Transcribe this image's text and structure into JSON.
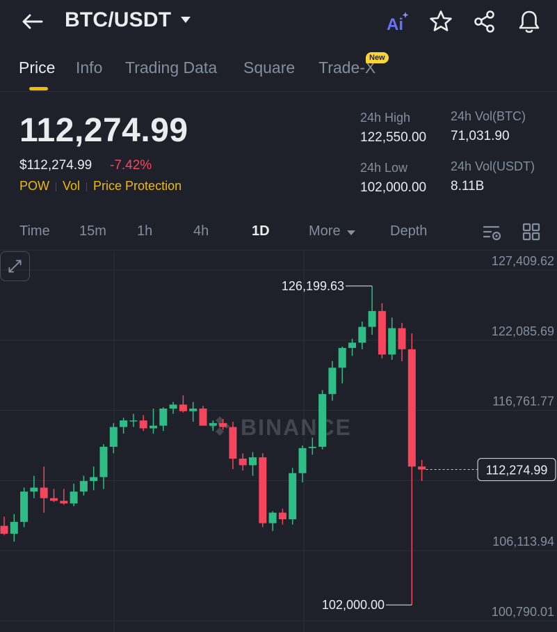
{
  "header": {
    "pair": "BTC/USDT",
    "icons": [
      "back-arrow-icon",
      "ai-icon",
      "star-icon",
      "share-icon",
      "bell-icon"
    ],
    "ai_label": "Ai"
  },
  "tabs": [
    {
      "label": "Price",
      "active": true
    },
    {
      "label": "Info"
    },
    {
      "label": "Trading Data"
    },
    {
      "label": "Square"
    },
    {
      "label": "Trade-X",
      "badge": "New"
    }
  ],
  "ticker": {
    "last_price": "112,274.99",
    "usd_price": "$112,274.99",
    "change_pct": "-7.42%",
    "tags": [
      "POW",
      "Vol",
      "Price Protection"
    ]
  },
  "stats": {
    "high_label": "24h High",
    "high_value": "122,550.00",
    "low_label": "24h Low",
    "low_value": "102,000.00",
    "vol_btc_label": "24h Vol(BTC)",
    "vol_btc_value": "71,031.90",
    "vol_usdt_label": "24h Vol(USDT)",
    "vol_usdt_value": "8.11B"
  },
  "intervals": {
    "items": [
      "Time",
      "15m",
      "1h",
      "4h",
      "1D",
      "More",
      "Depth"
    ],
    "active": "1D"
  },
  "colors": {
    "background": "#1e2129",
    "up": "#2ebd85",
    "down": "#f6465d",
    "accent": "#f0b90b",
    "muted": "#848e9c"
  },
  "chart": {
    "watermark": "BINANCE",
    "current_price_label": "112,274.99",
    "max_label": "126,199.63",
    "min_label": "102,000.00"
  },
  "chart_data": {
    "type": "candlestick",
    "y_ticks": [
      "127,409.62",
      "122,085.69",
      "116,761.77",
      "106,113.94",
      "100,790.01"
    ],
    "y_tick_values": [
      127409.62,
      122085.69,
      116761.77,
      106113.94,
      100790.01
    ],
    "ylim": [
      100790.01,
      127409.62
    ],
    "current_price": 112274.99,
    "max_marker": 126199.63,
    "min_marker": 102000.0,
    "candles": [
      {
        "o": 108000,
        "h": 108700,
        "l": 107300,
        "c": 107400
      },
      {
        "o": 107400,
        "h": 108900,
        "l": 106800,
        "c": 108300
      },
      {
        "o": 108300,
        "h": 110900,
        "l": 107900,
        "c": 110600
      },
      {
        "o": 110600,
        "h": 111800,
        "l": 110100,
        "c": 110900
      },
      {
        "o": 110900,
        "h": 112500,
        "l": 109000,
        "c": 110100
      },
      {
        "o": 110100,
        "h": 110800,
        "l": 109800,
        "c": 109900
      },
      {
        "o": 109900,
        "h": 110800,
        "l": 109600,
        "c": 109700
      },
      {
        "o": 109700,
        "h": 111200,
        "l": 109500,
        "c": 110600
      },
      {
        "o": 110600,
        "h": 111800,
        "l": 110300,
        "c": 111400
      },
      {
        "o": 111400,
        "h": 112500,
        "l": 110700,
        "c": 111700
      },
      {
        "o": 111700,
        "h": 114200,
        "l": 110800,
        "c": 114000
      },
      {
        "o": 114000,
        "h": 115800,
        "l": 113500,
        "c": 115500
      },
      {
        "o": 115500,
        "h": 116200,
        "l": 115000,
        "c": 116000
      },
      {
        "o": 116000,
        "h": 116500,
        "l": 115500,
        "c": 116000
      },
      {
        "o": 116000,
        "h": 116400,
        "l": 115200,
        "c": 115400
      },
      {
        "o": 115400,
        "h": 116900,
        "l": 115000,
        "c": 115600
      },
      {
        "o": 115600,
        "h": 117000,
        "l": 115200,
        "c": 116900
      },
      {
        "o": 116900,
        "h": 117400,
        "l": 116500,
        "c": 117200
      },
      {
        "o": 117200,
        "h": 117900,
        "l": 116600,
        "c": 116700
      },
      {
        "o": 116700,
        "h": 117400,
        "l": 115900,
        "c": 116900
      },
      {
        "o": 116900,
        "h": 117100,
        "l": 115700,
        "c": 115600
      },
      {
        "o": 115600,
        "h": 116000,
        "l": 115200,
        "c": 115800
      },
      {
        "o": 115800,
        "h": 116100,
        "l": 115300,
        "c": 115500
      },
      {
        "o": 115500,
        "h": 115900,
        "l": 112300,
        "c": 113100
      },
      {
        "o": 113100,
        "h": 113500,
        "l": 112200,
        "c": 112600
      },
      {
        "o": 112600,
        "h": 113600,
        "l": 111800,
        "c": 113200
      },
      {
        "o": 113200,
        "h": 113500,
        "l": 107900,
        "c": 108200
      },
      {
        "o": 108200,
        "h": 109100,
        "l": 107600,
        "c": 109000
      },
      {
        "o": 109000,
        "h": 109300,
        "l": 108100,
        "c": 108500
      },
      {
        "o": 108500,
        "h": 112400,
        "l": 108100,
        "c": 112000
      },
      {
        "o": 112000,
        "h": 114100,
        "l": 111300,
        "c": 113900
      },
      {
        "o": 113900,
        "h": 114700,
        "l": 113400,
        "c": 114000
      },
      {
        "o": 114000,
        "h": 118300,
        "l": 113800,
        "c": 118000
      },
      {
        "o": 118000,
        "h": 120500,
        "l": 117500,
        "c": 120000
      },
      {
        "o": 120000,
        "h": 121600,
        "l": 118800,
        "c": 121500
      },
      {
        "o": 121500,
        "h": 122200,
        "l": 120900,
        "c": 121900
      },
      {
        "o": 121900,
        "h": 123500,
        "l": 121400,
        "c": 123100
      },
      {
        "o": 123100,
        "h": 126199.63,
        "l": 122500,
        "c": 124300
      },
      {
        "o": 124300,
        "h": 124900,
        "l": 120700,
        "c": 121000
      },
      {
        "o": 121000,
        "h": 123800,
        "l": 120600,
        "c": 123000
      },
      {
        "o": 123000,
        "h": 123400,
        "l": 120500,
        "c": 121400
      },
      {
        "o": 121400,
        "h": 122600,
        "l": 102000,
        "c": 112500
      },
      {
        "o": 112500,
        "h": 113000,
        "l": 111400,
        "c": 112274.99
      }
    ]
  }
}
